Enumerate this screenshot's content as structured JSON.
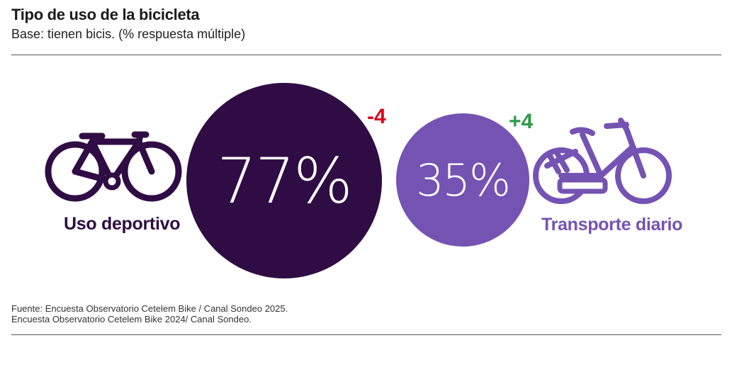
{
  "header": {
    "title": "Tipo de uso de la bicicleta",
    "subtitle": "Base: tienen bicis. (% respuesta múltiple)"
  },
  "chart_data": {
    "type": "bubble",
    "title": "Tipo de uso de la bicicleta",
    "subtitle": "Base: tienen bicis. (% respuesta múltiple)",
    "series": [
      {
        "name": "Uso deportivo",
        "value": 77,
        "value_label": "77%",
        "change_label": "-4",
        "color": "#300c45",
        "change_color": "#e0001b",
        "icon": "sport-bicycle-icon"
      },
      {
        "name": "Transporte diario",
        "value": 35,
        "value_label": "35%",
        "change_label": "+4",
        "color": "#7553b3",
        "change_color": "#2e9a48",
        "icon": "city-bicycle-icon"
      }
    ]
  },
  "footer": {
    "source_line1": "Fuente: Encuesta Observatorio Cetelem Bike / Canal Sondeo 2025.",
    "source_line2": "Encuesta Observatorio Cetelem Bike 2024/ Canal Sondeo."
  }
}
